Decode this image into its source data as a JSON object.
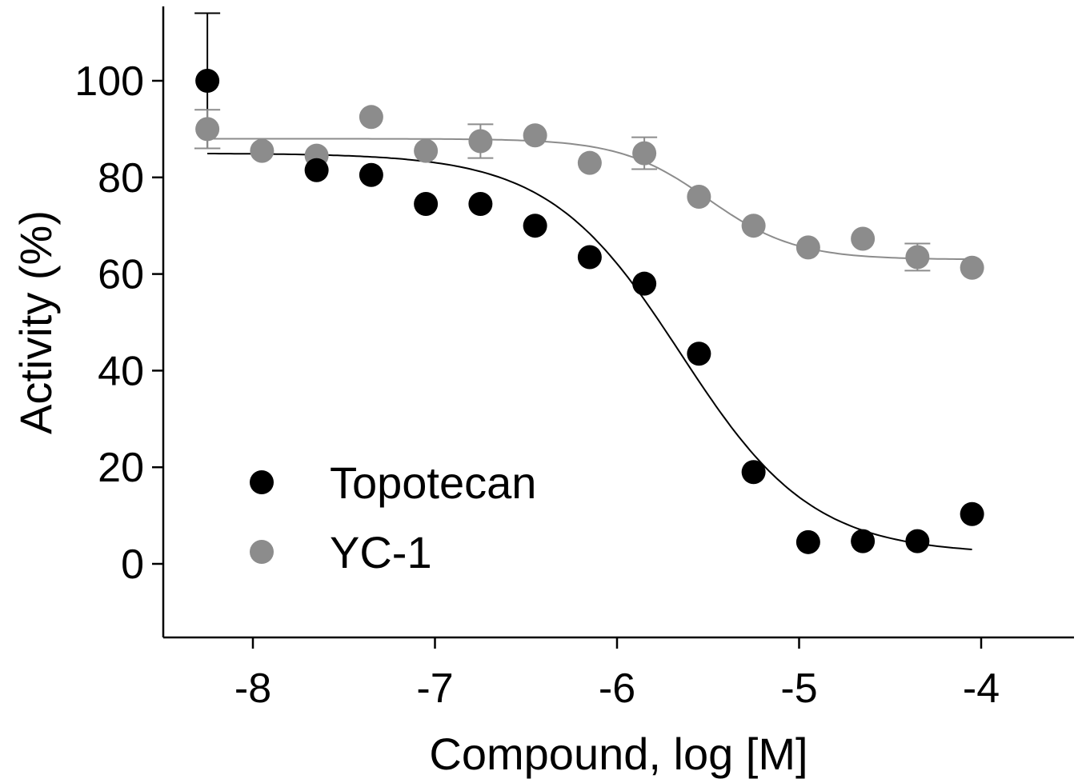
{
  "chart_data": {
    "type": "scatter",
    "xlabel": "Compound, log [M]",
    "ylabel": "Activity (%)",
    "xlim": [
      -8.5,
      -3.5
    ],
    "ylim": [
      -15,
      115
    ],
    "x_ticks": [
      "-8",
      "-7",
      "-6",
      "-5",
      "-4"
    ],
    "y_ticks": [
      "0",
      "20",
      "40",
      "60",
      "80",
      "100"
    ],
    "x_tick_values": [
      -8,
      -7,
      -6,
      -5,
      -4
    ],
    "y_tick_values": [
      0,
      20,
      40,
      60,
      80,
      100
    ],
    "grid": false,
    "legend_position": "bottom-left",
    "series": [
      {
        "name": "Topotecan",
        "color": "#000000",
        "x": [
          -8.25,
          -7.65,
          -7.35,
          -7.05,
          -6.75,
          -6.45,
          -6.15,
          -5.85,
          -5.55,
          -5.25,
          -4.95,
          -4.65,
          -4.35,
          -4.05
        ],
        "y": [
          100,
          81.5,
          80.5,
          74.5,
          74.5,
          70,
          63.5,
          58,
          43.5,
          19,
          4.5,
          4.7,
          4.7,
          10.3
        ],
        "error": [
          14,
          0,
          0,
          0,
          0,
          0,
          0,
          0,
          0,
          0,
          0,
          0,
          0,
          0
        ],
        "fit": {
          "top": 85,
          "bottom": 2,
          "logIC50": -5.65,
          "hill": 1.2,
          "x_range": [
            -8.25,
            -4.05
          ]
        }
      },
      {
        "name": "YC-1",
        "color": "#8c8c8c",
        "x": [
          -8.25,
          -7.95,
          -7.65,
          -7.35,
          -7.05,
          -6.75,
          -6.45,
          -6.15,
          -5.85,
          -5.55,
          -5.25,
          -4.95,
          -4.65,
          -4.35,
          -4.05
        ],
        "y": [
          90,
          85.5,
          84.5,
          92.5,
          85.5,
          87.5,
          88.7,
          83,
          85,
          76,
          70,
          65.5,
          67.3,
          63.5,
          61.3
        ],
        "error": [
          4,
          0,
          0,
          0,
          0,
          3.5,
          0,
          0,
          3.3,
          0,
          0,
          0,
          0,
          2.8,
          0
        ],
        "fit": {
          "top": 88,
          "bottom": 63,
          "logIC50": -5.5,
          "hill": 1.8,
          "x_range": [
            -8.25,
            -4.05
          ]
        }
      }
    ]
  }
}
